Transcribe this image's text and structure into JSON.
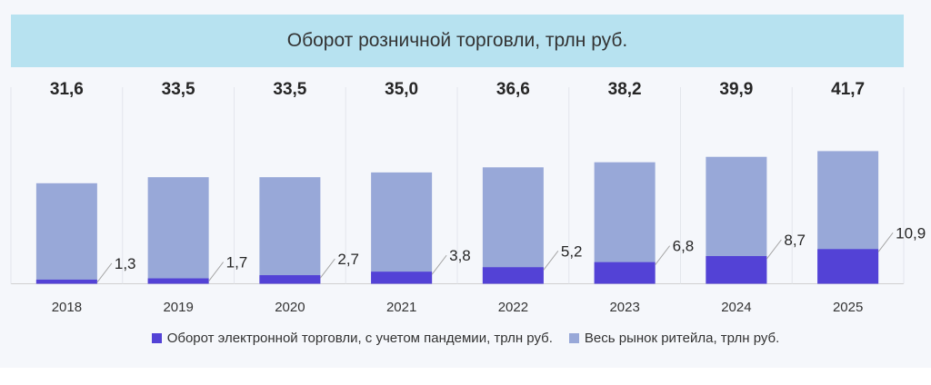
{
  "chart_data": {
    "type": "bar",
    "title": "Оборот розничной торговли, трлн руб.",
    "categories": [
      "2018",
      "2019",
      "2020",
      "2021",
      "2022",
      "2023",
      "2024",
      "2025"
    ],
    "series": [
      {
        "name": "Весь рынок ритейла, трлн руб.",
        "values": [
          31.6,
          33.5,
          33.5,
          35.0,
          36.6,
          38.2,
          39.9,
          41.7
        ],
        "labels": [
          "31,6",
          "33,5",
          "33,5",
          "35,0",
          "36,6",
          "38,2",
          "39,9",
          "41,7"
        ],
        "color": "#98a8d8"
      },
      {
        "name": "Оборот электронной торговли, с учетом пандемии, трлн руб.",
        "values": [
          1.3,
          1.7,
          2.7,
          3.8,
          5.2,
          6.8,
          8.7,
          10.9
        ],
        "labels": [
          "1,3",
          "1,7",
          "2,7",
          "3,8",
          "5,2",
          "6,8",
          "8,7",
          "10,9"
        ],
        "color": "#5342d6"
      }
    ],
    "overlap": true,
    "legend_position": "bottom",
    "legend_order": [
      1,
      0
    ],
    "grid": false
  }
}
